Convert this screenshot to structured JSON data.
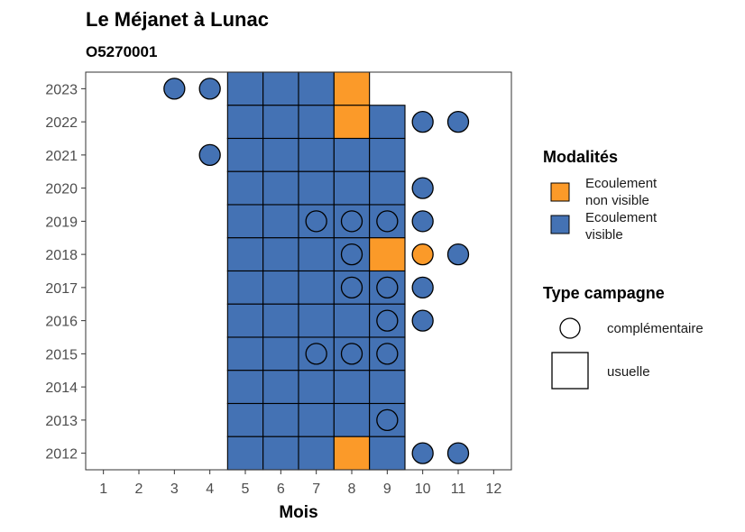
{
  "chart_data": {
    "type": "heatmap",
    "title": "Le Méjanet à Lunac",
    "subtitle": "O5270001",
    "xlabel": "Mois",
    "ylabel": "",
    "x_ticks": [
      1,
      2,
      3,
      4,
      5,
      6,
      7,
      8,
      9,
      10,
      11,
      12
    ],
    "y_ticks": [
      2012,
      2013,
      2014,
      2015,
      2016,
      2017,
      2018,
      2019,
      2020,
      2021,
      2022,
      2023
    ],
    "xlim": [
      0.5,
      12.5
    ],
    "ylim": [
      2011.5,
      2023.5
    ],
    "colors": {
      "Ecoulement non visible": "#fb9a29",
      "Ecoulement visible": "#4472b4"
    },
    "legend": {
      "modalites_title": "Modalités",
      "modalites": [
        {
          "label_lines": [
            "Ecoulement",
            "non visible"
          ],
          "key": "Ecoulement non visible"
        },
        {
          "label_lines": [
            "Ecoulement",
            "visible"
          ],
          "key": "Ecoulement visible"
        }
      ],
      "campagne_title": "Type campagne",
      "campagnes": [
        {
          "label": "complémentaire",
          "shape": "circle"
        },
        {
          "label": "usuelle",
          "shape": "square"
        }
      ]
    },
    "observations": [
      {
        "year": 2023,
        "month": 3,
        "type": "complémentaire",
        "modalite": "Ecoulement visible"
      },
      {
        "year": 2023,
        "month": 4,
        "type": "complémentaire",
        "modalite": "Ecoulement visible"
      },
      {
        "year": 2023,
        "month": 5,
        "type": "usuelle",
        "modalite": "Ecoulement visible"
      },
      {
        "year": 2023,
        "month": 6,
        "type": "usuelle",
        "modalite": "Ecoulement visible"
      },
      {
        "year": 2023,
        "month": 7,
        "type": "usuelle",
        "modalite": "Ecoulement visible"
      },
      {
        "year": 2023,
        "month": 8,
        "type": "usuelle",
        "modalite": "Ecoulement non visible"
      },
      {
        "year": 2022,
        "month": 5,
        "type": "usuelle",
        "modalite": "Ecoulement visible"
      },
      {
        "year": 2022,
        "month": 6,
        "type": "usuelle",
        "modalite": "Ecoulement visible"
      },
      {
        "year": 2022,
        "month": 7,
        "type": "usuelle",
        "modalite": "Ecoulement visible"
      },
      {
        "year": 2022,
        "month": 8,
        "type": "usuelle",
        "modalite": "Ecoulement non visible"
      },
      {
        "year": 2022,
        "month": 9,
        "type": "usuelle",
        "modalite": "Ecoulement visible"
      },
      {
        "year": 2022,
        "month": 10,
        "type": "complémentaire",
        "modalite": "Ecoulement visible"
      },
      {
        "year": 2022,
        "month": 11,
        "type": "complémentaire",
        "modalite": "Ecoulement visible"
      },
      {
        "year": 2021,
        "month": 4,
        "type": "complémentaire",
        "modalite": "Ecoulement visible"
      },
      {
        "year": 2021,
        "month": 5,
        "type": "usuelle",
        "modalite": "Ecoulement visible"
      },
      {
        "year": 2021,
        "month": 6,
        "type": "usuelle",
        "modalite": "Ecoulement visible"
      },
      {
        "year": 2021,
        "month": 7,
        "type": "usuelle",
        "modalite": "Ecoulement visible"
      },
      {
        "year": 2021,
        "month": 8,
        "type": "usuelle",
        "modalite": "Ecoulement visible"
      },
      {
        "year": 2021,
        "month": 9,
        "type": "usuelle",
        "modalite": "Ecoulement visible"
      },
      {
        "year": 2020,
        "month": 5,
        "type": "usuelle",
        "modalite": "Ecoulement visible"
      },
      {
        "year": 2020,
        "month": 6,
        "type": "usuelle",
        "modalite": "Ecoulement visible"
      },
      {
        "year": 2020,
        "month": 7,
        "type": "usuelle",
        "modalite": "Ecoulement visible"
      },
      {
        "year": 2020,
        "month": 8,
        "type": "usuelle",
        "modalite": "Ecoulement visible"
      },
      {
        "year": 2020,
        "month": 9,
        "type": "usuelle",
        "modalite": "Ecoulement visible"
      },
      {
        "year": 2020,
        "month": 10,
        "type": "complémentaire",
        "modalite": "Ecoulement visible"
      },
      {
        "year": 2019,
        "month": 5,
        "type": "usuelle",
        "modalite": "Ecoulement visible"
      },
      {
        "year": 2019,
        "month": 6,
        "type": "usuelle",
        "modalite": "Ecoulement visible"
      },
      {
        "year": 2019,
        "month": 7,
        "type": "usuelle",
        "modalite": "Ecoulement visible"
      },
      {
        "year": 2019,
        "month": 8,
        "type": "usuelle",
        "modalite": "Ecoulement visible"
      },
      {
        "year": 2019,
        "month": 9,
        "type": "usuelle",
        "modalite": "Ecoulement visible"
      },
      {
        "year": 2019,
        "month": 7,
        "type": "complémentaire",
        "modalite": "Ecoulement visible"
      },
      {
        "year": 2019,
        "month": 8,
        "type": "complémentaire",
        "modalite": "Ecoulement visible"
      },
      {
        "year": 2019,
        "month": 9,
        "type": "complémentaire",
        "modalite": "Ecoulement visible"
      },
      {
        "year": 2019,
        "month": 10,
        "type": "complémentaire",
        "modalite": "Ecoulement visible"
      },
      {
        "year": 2018,
        "month": 5,
        "type": "usuelle",
        "modalite": "Ecoulement visible"
      },
      {
        "year": 2018,
        "month": 6,
        "type": "usuelle",
        "modalite": "Ecoulement visible"
      },
      {
        "year": 2018,
        "month": 7,
        "type": "usuelle",
        "modalite": "Ecoulement visible"
      },
      {
        "year": 2018,
        "month": 8,
        "type": "usuelle",
        "modalite": "Ecoulement visible"
      },
      {
        "year": 2018,
        "month": 9,
        "type": "usuelle",
        "modalite": "Ecoulement non visible"
      },
      {
        "year": 2018,
        "month": 8,
        "type": "complémentaire",
        "modalite": "Ecoulement visible"
      },
      {
        "year": 2018,
        "month": 10,
        "type": "complémentaire",
        "modalite": "Ecoulement non visible"
      },
      {
        "year": 2018,
        "month": 11,
        "type": "complémentaire",
        "modalite": "Ecoulement visible"
      },
      {
        "year": 2017,
        "month": 5,
        "type": "usuelle",
        "modalite": "Ecoulement visible"
      },
      {
        "year": 2017,
        "month": 6,
        "type": "usuelle",
        "modalite": "Ecoulement visible"
      },
      {
        "year": 2017,
        "month": 7,
        "type": "usuelle",
        "modalite": "Ecoulement visible"
      },
      {
        "year": 2017,
        "month": 8,
        "type": "usuelle",
        "modalite": "Ecoulement visible"
      },
      {
        "year": 2017,
        "month": 9,
        "type": "usuelle",
        "modalite": "Ecoulement visible"
      },
      {
        "year": 2017,
        "month": 8,
        "type": "complémentaire",
        "modalite": "Ecoulement visible"
      },
      {
        "year": 2017,
        "month": 9,
        "type": "complémentaire",
        "modalite": "Ecoulement visible"
      },
      {
        "year": 2017,
        "month": 10,
        "type": "complémentaire",
        "modalite": "Ecoulement visible"
      },
      {
        "year": 2016,
        "month": 5,
        "type": "usuelle",
        "modalite": "Ecoulement visible"
      },
      {
        "year": 2016,
        "month": 6,
        "type": "usuelle",
        "modalite": "Ecoulement visible"
      },
      {
        "year": 2016,
        "month": 7,
        "type": "usuelle",
        "modalite": "Ecoulement visible"
      },
      {
        "year": 2016,
        "month": 8,
        "type": "usuelle",
        "modalite": "Ecoulement visible"
      },
      {
        "year": 2016,
        "month": 9,
        "type": "usuelle",
        "modalite": "Ecoulement visible"
      },
      {
        "year": 2016,
        "month": 9,
        "type": "complémentaire",
        "modalite": "Ecoulement visible"
      },
      {
        "year": 2016,
        "month": 10,
        "type": "complémentaire",
        "modalite": "Ecoulement visible"
      },
      {
        "year": 2015,
        "month": 5,
        "type": "usuelle",
        "modalite": "Ecoulement visible"
      },
      {
        "year": 2015,
        "month": 6,
        "type": "usuelle",
        "modalite": "Ecoulement visible"
      },
      {
        "year": 2015,
        "month": 7,
        "type": "usuelle",
        "modalite": "Ecoulement visible"
      },
      {
        "year": 2015,
        "month": 8,
        "type": "usuelle",
        "modalite": "Ecoulement visible"
      },
      {
        "year": 2015,
        "month": 9,
        "type": "usuelle",
        "modalite": "Ecoulement visible"
      },
      {
        "year": 2015,
        "month": 7,
        "type": "complémentaire",
        "modalite": "Ecoulement visible"
      },
      {
        "year": 2015,
        "month": 8,
        "type": "complémentaire",
        "modalite": "Ecoulement visible"
      },
      {
        "year": 2015,
        "month": 9,
        "type": "complémentaire",
        "modalite": "Ecoulement visible"
      },
      {
        "year": 2014,
        "month": 5,
        "type": "usuelle",
        "modalite": "Ecoulement visible"
      },
      {
        "year": 2014,
        "month": 6,
        "type": "usuelle",
        "modalite": "Ecoulement visible"
      },
      {
        "year": 2014,
        "month": 7,
        "type": "usuelle",
        "modalite": "Ecoulement visible"
      },
      {
        "year": 2014,
        "month": 8,
        "type": "usuelle",
        "modalite": "Ecoulement visible"
      },
      {
        "year": 2014,
        "month": 9,
        "type": "usuelle",
        "modalite": "Ecoulement visible"
      },
      {
        "year": 2013,
        "month": 5,
        "type": "usuelle",
        "modalite": "Ecoulement visible"
      },
      {
        "year": 2013,
        "month": 6,
        "type": "usuelle",
        "modalite": "Ecoulement visible"
      },
      {
        "year": 2013,
        "month": 7,
        "type": "usuelle",
        "modalite": "Ecoulement visible"
      },
      {
        "year": 2013,
        "month": 8,
        "type": "usuelle",
        "modalite": "Ecoulement visible"
      },
      {
        "year": 2013,
        "month": 9,
        "type": "usuelle",
        "modalite": "Ecoulement visible"
      },
      {
        "year": 2013,
        "month": 9,
        "type": "complémentaire",
        "modalite": "Ecoulement visible"
      },
      {
        "year": 2012,
        "month": 5,
        "type": "usuelle",
        "modalite": "Ecoulement visible"
      },
      {
        "year": 2012,
        "month": 6,
        "type": "usuelle",
        "modalite": "Ecoulement visible"
      },
      {
        "year": 2012,
        "month": 7,
        "type": "usuelle",
        "modalite": "Ecoulement visible"
      },
      {
        "year": 2012,
        "month": 8,
        "type": "usuelle",
        "modalite": "Ecoulement non visible"
      },
      {
        "year": 2012,
        "month": 9,
        "type": "usuelle",
        "modalite": "Ecoulement visible"
      },
      {
        "year": 2012,
        "month": 10,
        "type": "complémentaire",
        "modalite": "Ecoulement visible"
      },
      {
        "year": 2012,
        "month": 11,
        "type": "complémentaire",
        "modalite": "Ecoulement visible"
      }
    ]
  }
}
